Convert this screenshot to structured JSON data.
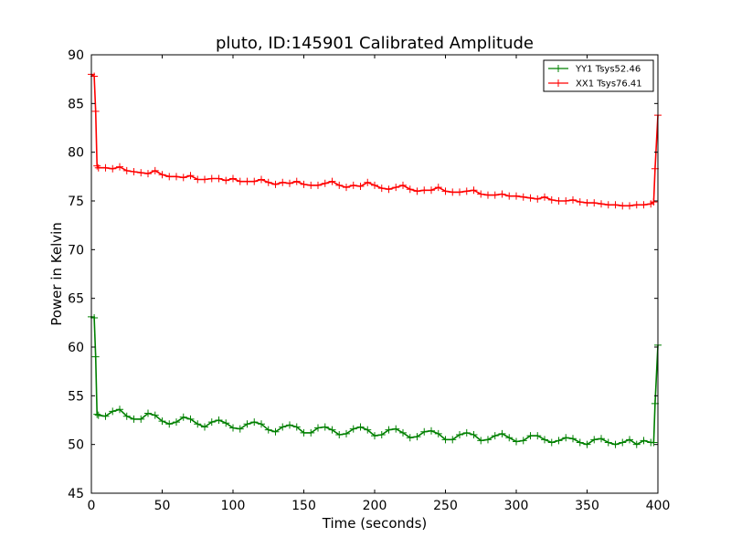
{
  "chart_data": {
    "type": "line",
    "title": "pluto, ID:145901 Calibrated Amplitude",
    "xlabel": "Time (seconds)",
    "ylabel": "Power in Kelvin",
    "xlim": [
      0,
      400
    ],
    "ylim": [
      45,
      90
    ],
    "xticks": [
      "0",
      "50",
      "100",
      "150",
      "200",
      "250",
      "300",
      "350",
      "400"
    ],
    "yticks": [
      "45",
      "50",
      "55",
      "60",
      "65",
      "70",
      "75",
      "80",
      "85",
      "90"
    ],
    "grid": false,
    "legend_position": "top-right",
    "series": [
      {
        "name": "YY1 Tsys52.46",
        "color": "#008000",
        "x": [
          0,
          2,
          3,
          4,
          5,
          10,
          15,
          20,
          25,
          30,
          35,
          40,
          45,
          50,
          55,
          60,
          65,
          70,
          75,
          80,
          85,
          90,
          95,
          100,
          105,
          110,
          115,
          120,
          125,
          130,
          135,
          140,
          145,
          150,
          155,
          160,
          165,
          170,
          175,
          180,
          185,
          190,
          195,
          200,
          205,
          210,
          215,
          220,
          225,
          230,
          235,
          240,
          245,
          250,
          255,
          260,
          265,
          270,
          275,
          280,
          285,
          290,
          295,
          300,
          305,
          310,
          315,
          320,
          325,
          330,
          335,
          340,
          345,
          350,
          355,
          360,
          365,
          370,
          375,
          380,
          385,
          390,
          395,
          397,
          398,
          400
        ],
        "values": [
          63.1,
          63.0,
          59.0,
          53.1,
          53.0,
          52.9,
          53.4,
          53.6,
          52.9,
          52.6,
          52.6,
          53.2,
          53.0,
          52.4,
          52.1,
          52.3,
          52.8,
          52.6,
          52.1,
          51.8,
          52.3,
          52.5,
          52.2,
          51.7,
          51.6,
          52.1,
          52.3,
          52.1,
          51.5,
          51.3,
          51.8,
          52.0,
          51.8,
          51.2,
          51.2,
          51.7,
          51.8,
          51.5,
          51.0,
          51.1,
          51.6,
          51.8,
          51.5,
          50.9,
          51.0,
          51.5,
          51.6,
          51.2,
          50.7,
          50.8,
          51.3,
          51.4,
          51.1,
          50.5,
          50.5,
          51.0,
          51.2,
          51.0,
          50.4,
          50.5,
          50.9,
          51.1,
          50.7,
          50.3,
          50.4,
          50.9,
          50.9,
          50.5,
          50.2,
          50.4,
          50.7,
          50.6,
          50.2,
          50.0,
          50.5,
          50.6,
          50.2,
          50.0,
          50.2,
          50.5,
          50.0,
          50.4,
          50.2,
          50.2,
          54.2,
          60.2
        ]
      },
      {
        "name": "XX1 Tsys76.41",
        "color": "#ff0000",
        "x": [
          0,
          2,
          3,
          4,
          5,
          10,
          15,
          20,
          25,
          30,
          35,
          40,
          45,
          50,
          55,
          60,
          65,
          70,
          75,
          80,
          85,
          90,
          95,
          100,
          105,
          110,
          115,
          120,
          125,
          130,
          135,
          140,
          145,
          150,
          155,
          160,
          165,
          170,
          175,
          180,
          185,
          190,
          195,
          200,
          205,
          210,
          215,
          220,
          225,
          230,
          235,
          240,
          245,
          250,
          255,
          260,
          265,
          270,
          275,
          280,
          285,
          290,
          295,
          300,
          305,
          310,
          315,
          320,
          325,
          330,
          335,
          340,
          345,
          350,
          355,
          360,
          365,
          370,
          375,
          380,
          385,
          390,
          395,
          397,
          398,
          400
        ],
        "values": [
          88.0,
          87.8,
          84.2,
          78.6,
          78.4,
          78.4,
          78.3,
          78.5,
          78.1,
          78.0,
          77.9,
          77.8,
          78.1,
          77.7,
          77.5,
          77.5,
          77.4,
          77.6,
          77.2,
          77.2,
          77.3,
          77.3,
          77.1,
          77.3,
          77.0,
          77.0,
          77.0,
          77.2,
          76.9,
          76.7,
          76.9,
          76.8,
          77.0,
          76.7,
          76.6,
          76.6,
          76.8,
          77.0,
          76.6,
          76.4,
          76.6,
          76.5,
          76.9,
          76.6,
          76.3,
          76.2,
          76.4,
          76.6,
          76.2,
          76.0,
          76.1,
          76.1,
          76.4,
          76.0,
          75.9,
          75.9,
          76.0,
          76.1,
          75.7,
          75.6,
          75.6,
          75.7,
          75.5,
          75.5,
          75.4,
          75.3,
          75.2,
          75.4,
          75.1,
          75.0,
          75.0,
          75.1,
          74.9,
          74.8,
          74.8,
          74.7,
          74.6,
          74.6,
          74.5,
          74.5,
          74.6,
          74.6,
          74.7,
          74.9,
          78.3,
          83.8
        ]
      }
    ]
  }
}
